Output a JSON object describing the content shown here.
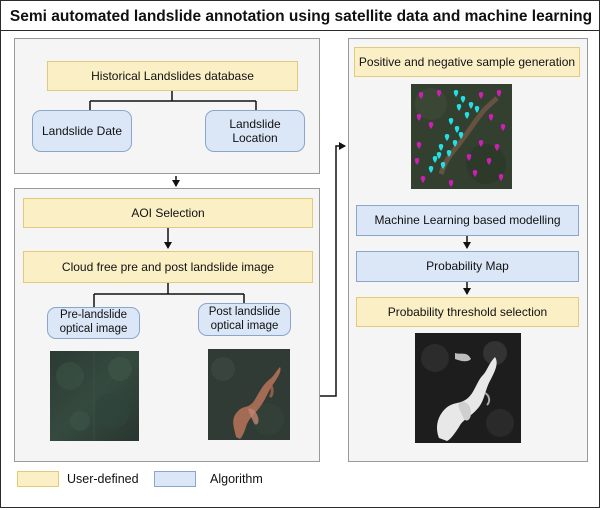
{
  "title": "Semi automated landslide annotation using satellite data and machine learning",
  "left_top": {
    "database": "Historical Landslides database",
    "date": "Landslide Date",
    "location": "Landslide Location"
  },
  "left_bottom": {
    "aoi": "AOI Selection",
    "cloud_free": "Cloud free pre and post landslide image",
    "pre": "Pre-landslide optical image",
    "post": "Post landslide optical image"
  },
  "right": {
    "sample_gen": "Positive and negative sample generation",
    "ml": "Machine Learning based modelling",
    "prob_map": "Probability Map",
    "threshold": "Probability threshold selection"
  },
  "legend": {
    "user_defined": "User-defined",
    "algorithm": "Algorithm"
  },
  "colors": {
    "user_defined_fill": "#fbefc6",
    "algorithm_fill": "#dbe7f7",
    "positive_marker": "#22e0e6",
    "negative_marker": "#cc1fb4"
  }
}
